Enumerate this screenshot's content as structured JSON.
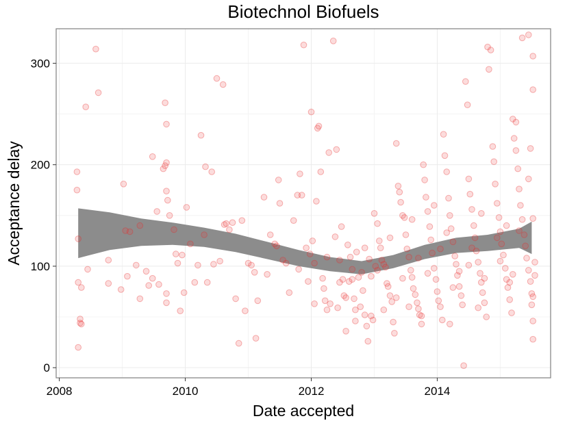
{
  "chart_data": {
    "type": "scatter",
    "title": "Biotechnol Biofuels",
    "xlabel": "Date accepted",
    "ylabel": "Acceptance delay",
    "xlim": [
      2007.95,
      2015.8
    ],
    "ylim": [
      -10,
      334
    ],
    "x_ticks": [
      2008,
      2010,
      2012,
      2014
    ],
    "y_ticks": [
      0,
      100,
      200,
      300
    ],
    "x_tick_labels": [
      "2008",
      "2010",
      "2012",
      "2014"
    ],
    "y_tick_labels": [
      "0",
      "100",
      "200",
      "300"
    ],
    "grid": true,
    "point_color": "#f03c3c",
    "band_color": "#8c8c8c",
    "smooth_band": {
      "x": [
        2008.3,
        2008.8,
        2009.3,
        2009.8,
        2010.3,
        2010.8,
        2011.3,
        2011.8,
        2012.3,
        2012.8,
        2013.3,
        2013.8,
        2014.3,
        2014.8,
        2015.3,
        2015.5
      ],
      "lower": [
        108,
        116,
        120,
        121,
        119,
        114,
        107,
        100,
        95,
        92,
        98,
        107,
        113,
        115,
        118,
        112
      ],
      "upper": [
        157,
        153,
        147,
        143,
        138,
        132,
        124,
        116,
        109,
        105,
        111,
        121,
        128,
        131,
        137,
        144
      ]
    },
    "points": [
      [
        2008.28,
        193
      ],
      [
        2008.28,
        175
      ],
      [
        2008.3,
        127
      ],
      [
        2008.3,
        84
      ],
      [
        2008.3,
        20
      ],
      [
        2008.33,
        48
      ],
      [
        2008.33,
        44
      ],
      [
        2008.35,
        43
      ],
      [
        2008.35,
        79
      ],
      [
        2008.42,
        257
      ],
      [
        2008.45,
        97
      ],
      [
        2008.58,
        314
      ],
      [
        2008.62,
        271
      ],
      [
        2008.78,
        106
      ],
      [
        2008.78,
        83
      ],
      [
        2008.98,
        77
      ],
      [
        2009.02,
        181
      ],
      [
        2009.05,
        135
      ],
      [
        2009.08,
        90
      ],
      [
        2009.12,
        134
      ],
      [
        2009.22,
        101
      ],
      [
        2009.28,
        68
      ],
      [
        2009.28,
        140
      ],
      [
        2009.38,
        95
      ],
      [
        2009.42,
        81
      ],
      [
        2009.48,
        88
      ],
      [
        2009.48,
        208
      ],
      [
        2009.55,
        154
      ],
      [
        2009.58,
        82
      ],
      [
        2009.65,
        196
      ],
      [
        2009.68,
        199
      ],
      [
        2009.68,
        261
      ],
      [
        2009.7,
        240
      ],
      [
        2009.7,
        202
      ],
      [
        2009.7,
        174
      ],
      [
        2009.72,
        165
      ],
      [
        2009.7,
        73
      ],
      [
        2009.7,
        64
      ],
      [
        2009.75,
        150
      ],
      [
        2009.82,
        136
      ],
      [
        2009.85,
        112
      ],
      [
        2009.88,
        103
      ],
      [
        2009.92,
        56
      ],
      [
        2009.95,
        111
      ],
      [
        2009.98,
        74
      ],
      [
        2010.02,
        158
      ],
      [
        2010.08,
        122
      ],
      [
        2010.15,
        84
      ],
      [
        2010.2,
        101
      ],
      [
        2010.25,
        229
      ],
      [
        2010.3,
        131
      ],
      [
        2010.32,
        198
      ],
      [
        2010.35,
        84
      ],
      [
        2010.42,
        193
      ],
      [
        2010.45,
        102
      ],
      [
        2010.5,
        285
      ],
      [
        2010.55,
        105
      ],
      [
        2010.6,
        279
      ],
      [
        2010.62,
        141
      ],
      [
        2010.65,
        142
      ],
      [
        2010.7,
        136
      ],
      [
        2010.75,
        143
      ],
      [
        2010.8,
        68
      ],
      [
        2010.85,
        24
      ],
      [
        2010.9,
        145
      ],
      [
        2010.95,
        56
      ],
      [
        2011.0,
        103
      ],
      [
        2011.05,
        101
      ],
      [
        2011.1,
        94
      ],
      [
        2011.12,
        29
      ],
      [
        2011.15,
        66
      ],
      [
        2011.25,
        168
      ],
      [
        2011.3,
        92
      ],
      [
        2011.35,
        131
      ],
      [
        2011.42,
        122
      ],
      [
        2011.45,
        120
      ],
      [
        2011.48,
        185
      ],
      [
        2011.5,
        162
      ],
      [
        2011.55,
        106
      ],
      [
        2011.6,
        103
      ],
      [
        2011.65,
        74
      ],
      [
        2011.72,
        145
      ],
      [
        2011.78,
        170
      ],
      [
        2011.8,
        97
      ],
      [
        2011.82,
        191
      ],
      [
        2011.85,
        170
      ],
      [
        2011.88,
        318
      ],
      [
        2011.92,
        118
      ],
      [
        2011.95,
        85
      ],
      [
        2011.98,
        112
      ],
      [
        2012.0,
        252
      ],
      [
        2012.02,
        125
      ],
      [
        2012.05,
        103
      ],
      [
        2012.08,
        164
      ],
      [
        2012.1,
        236
      ],
      [
        2012.12,
        238
      ],
      [
        2012.15,
        193
      ],
      [
        2012.18,
        88
      ],
      [
        2012.2,
        78
      ],
      [
        2012.22,
        66
      ],
      [
        2012.25,
        57
      ],
      [
        2012.28,
        212
      ],
      [
        2012.3,
        63
      ],
      [
        2012.35,
        322
      ],
      [
        2012.38,
        129
      ],
      [
        2012.4,
        215
      ],
      [
        2012.42,
        59
      ],
      [
        2012.45,
        106
      ],
      [
        2012.48,
        139
      ],
      [
        2012.5,
        87
      ],
      [
        2012.52,
        71
      ],
      [
        2012.55,
        69
      ],
      [
        2012.58,
        121
      ],
      [
        2012.6,
        85
      ],
      [
        2012.62,
        109
      ],
      [
        2012.65,
        87
      ],
      [
        2012.68,
        68
      ],
      [
        2012.7,
        57
      ],
      [
        2012.72,
        114
      ],
      [
        2012.75,
        89
      ],
      [
        2012.78,
        60
      ],
      [
        2012.8,
        94
      ],
      [
        2012.82,
        76
      ],
      [
        2012.85,
        52
      ],
      [
        2012.88,
        41
      ],
      [
        2012.9,
        26
      ],
      [
        2012.92,
        107
      ],
      [
        2012.95,
        90
      ],
      [
        2012.98,
        47
      ],
      [
        2013.0,
        152
      ],
      [
        2013.02,
        100
      ],
      [
        2013.05,
        142
      ],
      [
        2013.08,
        125
      ],
      [
        2013.1,
        118
      ],
      [
        2013.12,
        106
      ],
      [
        2013.15,
        102
      ],
      [
        2013.18,
        99
      ],
      [
        2013.2,
        83
      ],
      [
        2013.22,
        80
      ],
      [
        2013.25,
        71
      ],
      [
        2013.28,
        65
      ],
      [
        2013.3,
        45
      ],
      [
        2013.32,
        34
      ],
      [
        2013.35,
        221
      ],
      [
        2013.38,
        179
      ],
      [
        2013.4,
        173
      ],
      [
        2013.42,
        163
      ],
      [
        2013.45,
        150
      ],
      [
        2013.48,
        148
      ],
      [
        2013.5,
        131
      ],
      [
        2013.52,
        117
      ],
      [
        2013.55,
        109
      ],
      [
        2013.58,
        96
      ],
      [
        2013.6,
        89
      ],
      [
        2013.62,
        78
      ],
      [
        2013.65,
        72
      ],
      [
        2013.68,
        64
      ],
      [
        2013.7,
        58
      ],
      [
        2013.72,
        52
      ],
      [
        2013.75,
        43
      ],
      [
        2013.78,
        200
      ],
      [
        2013.8,
        185
      ],
      [
        2013.82,
        168
      ],
      [
        2013.85,
        154
      ],
      [
        2013.88,
        139
      ],
      [
        2013.9,
        126
      ],
      [
        2013.92,
        113
      ],
      [
        2013.95,
        98
      ],
      [
        2013.98,
        87
      ],
      [
        2014.0,
        75
      ],
      [
        2014.02,
        66
      ],
      [
        2014.05,
        60
      ],
      [
        2014.08,
        47
      ],
      [
        2014.1,
        230
      ],
      [
        2014.12,
        209
      ],
      [
        2014.15,
        193
      ],
      [
        2014.18,
        167
      ],
      [
        2014.2,
        150
      ],
      [
        2014.22,
        137
      ],
      [
        2014.25,
        124
      ],
      [
        2014.28,
        110
      ],
      [
        2014.3,
        102
      ],
      [
        2014.32,
        91
      ],
      [
        2014.35,
        80
      ],
      [
        2014.38,
        71
      ],
      [
        2014.4,
        62
      ],
      [
        2014.42,
        2
      ],
      [
        2014.45,
        282
      ],
      [
        2014.48,
        259
      ],
      [
        2014.5,
        186
      ],
      [
        2014.52,
        171
      ],
      [
        2014.55,
        156
      ],
      [
        2014.58,
        140
      ],
      [
        2014.6,
        128
      ],
      [
        2014.62,
        115
      ],
      [
        2014.65,
        104
      ],
      [
        2014.68,
        93
      ],
      [
        2014.7,
        84
      ],
      [
        2014.72,
        74
      ],
      [
        2014.75,
        64
      ],
      [
        2014.78,
        50
      ],
      [
        2014.8,
        316
      ],
      [
        2014.82,
        294
      ],
      [
        2014.85,
        313
      ],
      [
        2014.88,
        218
      ],
      [
        2014.9,
        203
      ],
      [
        2014.92,
        181
      ],
      [
        2014.95,
        162
      ],
      [
        2014.98,
        148
      ],
      [
        2015.0,
        134
      ],
      [
        2015.02,
        122
      ],
      [
        2015.05,
        111
      ],
      [
        2015.08,
        98
      ],
      [
        2015.1,
        87
      ],
      [
        2015.12,
        79
      ],
      [
        2015.15,
        67
      ],
      [
        2015.18,
        54
      ],
      [
        2015.2,
        245
      ],
      [
        2015.22,
        226
      ],
      [
        2015.25,
        214
      ],
      [
        2015.28,
        196
      ],
      [
        2015.3,
        176
      ],
      [
        2015.32,
        160
      ],
      [
        2015.35,
        146
      ],
      [
        2015.38,
        131
      ],
      [
        2015.4,
        120
      ],
      [
        2015.42,
        108
      ],
      [
        2015.45,
        96
      ],
      [
        2015.48,
        85
      ],
      [
        2015.5,
        73
      ],
      [
        2015.5,
        62
      ],
      [
        2015.52,
        46
      ],
      [
        2015.52,
        28
      ],
      [
        2015.35,
        325
      ],
      [
        2015.45,
        328
      ],
      [
        2015.52,
        307
      ],
      [
        2015.52,
        274
      ],
      [
        2015.48,
        216
      ],
      [
        2015.45,
        186
      ],
      [
        2015.52,
        147
      ],
      [
        2015.55,
        104
      ],
      [
        2015.55,
        91
      ],
      [
        2015.52,
        70
      ],
      [
        2015.25,
        242
      ],
      [
        2015.3,
        135
      ],
      [
        2015.1,
        140
      ],
      [
        2014.95,
        128
      ],
      [
        2014.7,
        152
      ],
      [
        2014.55,
        118
      ],
      [
        2014.35,
        95
      ],
      [
        2014.15,
        133
      ],
      [
        2013.95,
        160
      ],
      [
        2013.7,
        108
      ],
      [
        2013.45,
        88
      ],
      [
        2013.25,
        128
      ],
      [
        2013.05,
        96
      ],
      [
        2012.85,
        118
      ],
      [
        2012.65,
        97
      ],
      [
        2012.45,
        84
      ],
      [
        2012.25,
        109
      ],
      [
        2012.05,
        63
      ],
      [
        2013.6,
        146
      ],
      [
        2013.85,
        93
      ],
      [
        2014.05,
        117
      ],
      [
        2014.25,
        79
      ],
      [
        2014.5,
        101
      ],
      [
        2014.75,
        88
      ],
      [
        2015.0,
        105
      ],
      [
        2015.2,
        92
      ],
      [
        2013.35,
        69
      ],
      [
        2013.55,
        60
      ],
      [
        2013.15,
        57
      ],
      [
        2012.95,
        51
      ],
      [
        2012.7,
        46
      ],
      [
        2012.55,
        36
      ],
      [
        2013.75,
        51
      ],
      [
        2014.2,
        43
      ],
      [
        2014.65,
        59
      ],
      [
        2015.15,
        84
      ]
    ]
  }
}
